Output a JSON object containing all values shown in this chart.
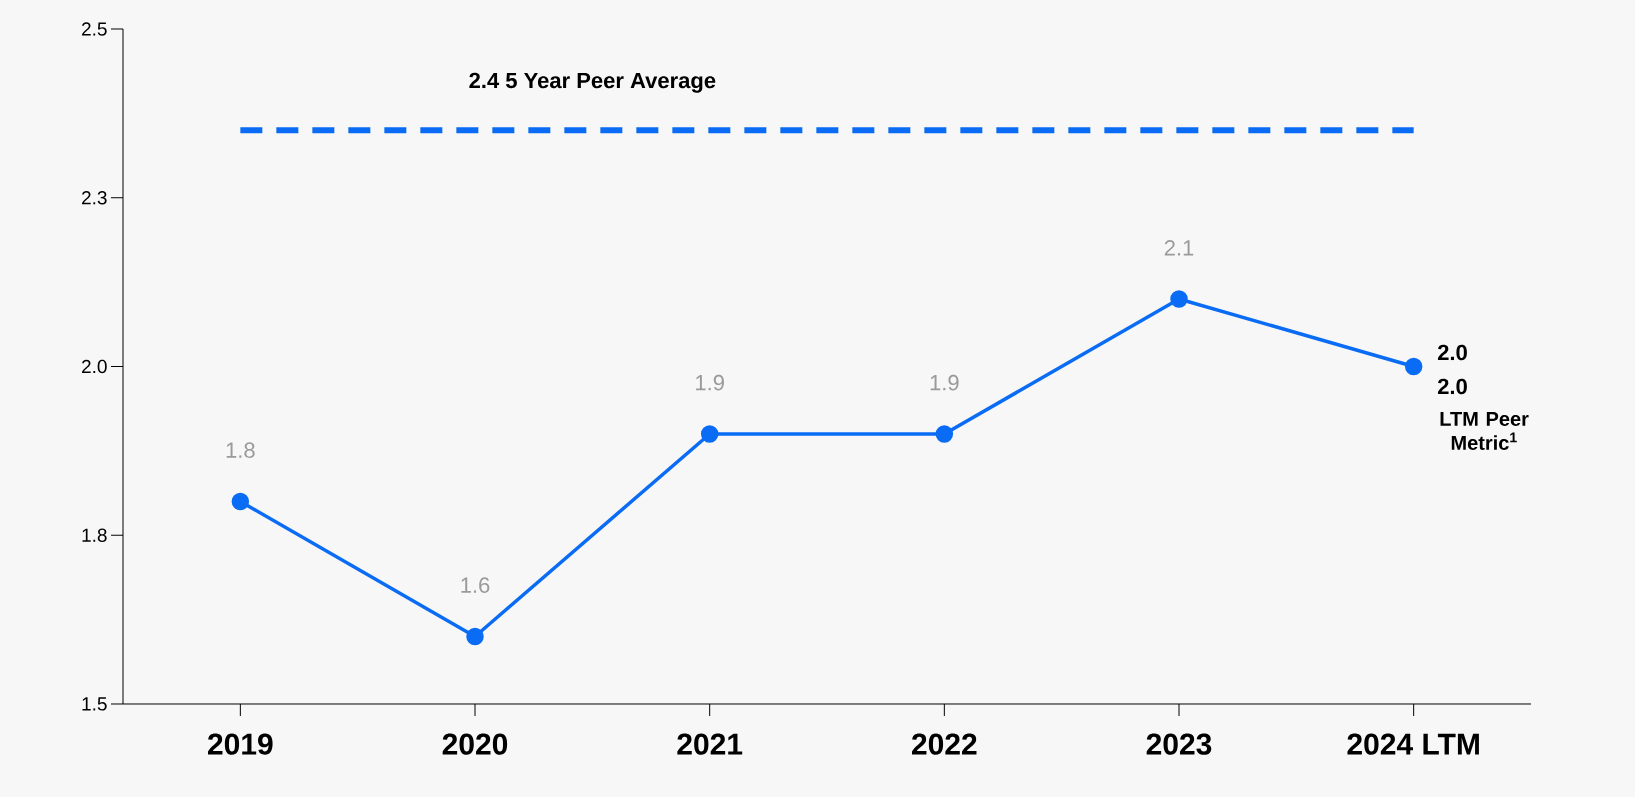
{
  "chart_data": {
    "type": "line",
    "categories": [
      "2019",
      "2020",
      "2021",
      "2022",
      "2023",
      "2024 LTM"
    ],
    "series": [
      {
        "color": "#0a6cf5",
        "values": [
          1.8,
          1.6,
          1.9,
          1.9,
          2.1,
          2.0
        ]
      }
    ],
    "value_labels": [
      "1.8",
      "1.6",
      "1.9",
      "1.9",
      "2.1",
      "2.0"
    ],
    "ylim": [
      1.5,
      2.5
    ],
    "yticks": [
      1.5,
      {
        "value": 1.75,
        "label": "1.8"
      },
      {
        "value": 2.0,
        "label": "2.0"
      },
      {
        "value": 2.25,
        "label": "2.3"
      },
      2.5
    ],
    "ref_lines": [
      {
        "axis": "y",
        "value": 2.35,
        "label": "2.4  5 Year  Peer Average",
        "color": "#0a6cf5",
        "line_style": "dashed"
      }
    ],
    "annotations": [
      {
        "text": "2.0",
        "x": "2024 LTM",
        "y": 2.0
      },
      "LTM Peer Metric$^{1}$"
    ],
    "marker": "circle",
    "line_style": "solid",
    "grid": false
  }
}
